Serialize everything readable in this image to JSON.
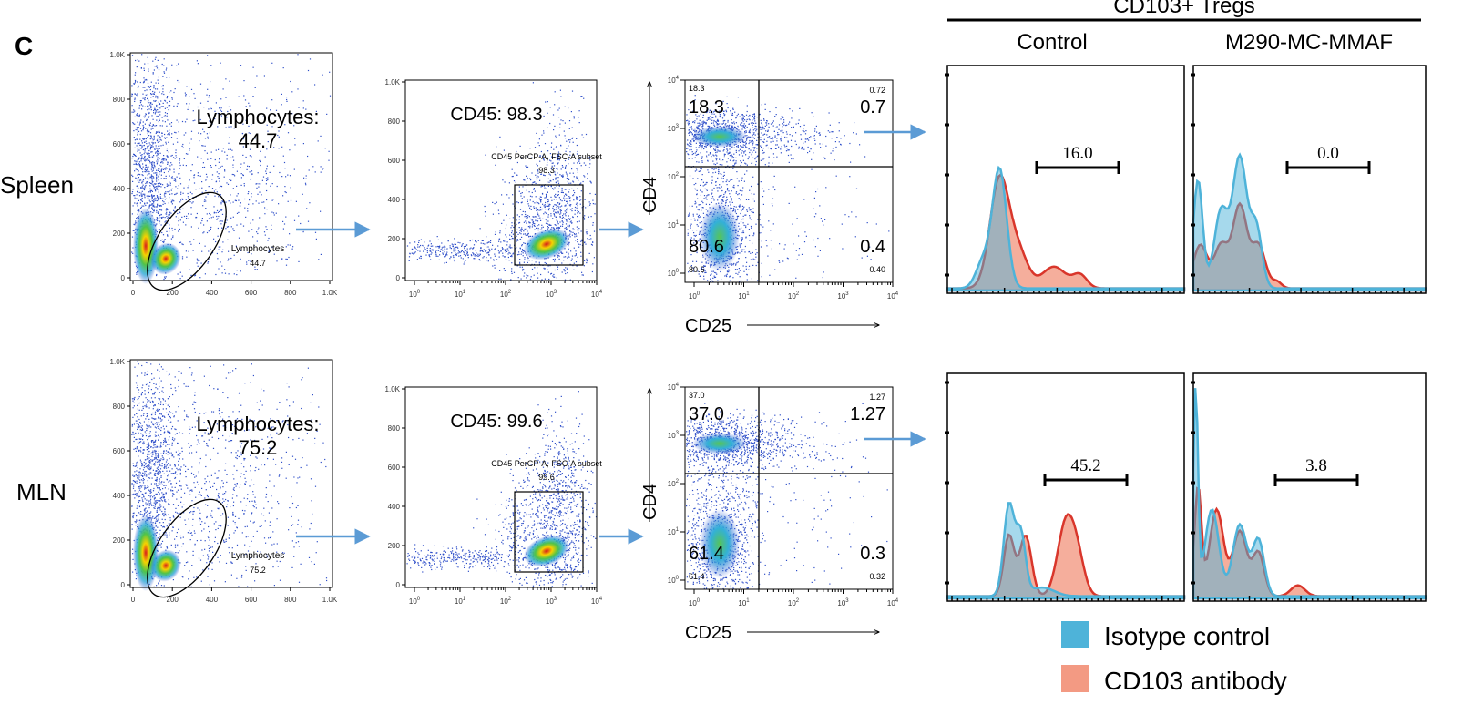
{
  "figure": {
    "panel_letter": "C",
    "group_title": "CD103+ Tregs",
    "columns": [
      "Control",
      "M290-MC-MMAF"
    ],
    "linear_ticks": [
      "0",
      "200",
      "400",
      "600",
      "800",
      "1.0K"
    ],
    "log_ticks": {
      "base": "10",
      "exponents": [
        "0",
        "1",
        "2",
        "3",
        "4"
      ]
    },
    "y_axis_label": "CD4",
    "x_axis_label": "CD25",
    "rows": [
      {
        "name": "Spleen",
        "lymphocytes": {
          "label": "Lymphocytes:",
          "value": "44.7",
          "gate_label": "Lymphocytes",
          "gate_value": "44.7"
        },
        "cd45": {
          "label": "CD45: 98.3",
          "gate_label": "CD45 PerCP-A, FSC-A subset",
          "gate_value": "98.3"
        },
        "quadrants": {
          "large": [
            "18.3",
            "0.7",
            "80.6",
            "0.4"
          ],
          "small": [
            "18.3",
            "0.72",
            "80.6",
            "0.40"
          ]
        },
        "histograms": [
          "16.0",
          "0.0"
        ]
      },
      {
        "name": "MLN",
        "lymphocytes": {
          "label": "Lymphocytes:",
          "value": "75.2",
          "gate_label": "Lymphocytes",
          "gate_value": "75.2"
        },
        "cd45": {
          "label": "CD45: 99.6",
          "gate_label": "CD45 PerCP-A, FSC-A subset",
          "gate_value": "99.6"
        },
        "quadrants": {
          "large": [
            "37.0",
            "1.27",
            "61.4",
            "0.3"
          ],
          "small": [
            "37.0",
            "1.27",
            "61.4",
            "0.32"
          ]
        },
        "histograms": [
          "45.2",
          "3.8"
        ]
      }
    ],
    "legend": [
      "Isotype control",
      "CD103 antibody"
    ]
  }
}
